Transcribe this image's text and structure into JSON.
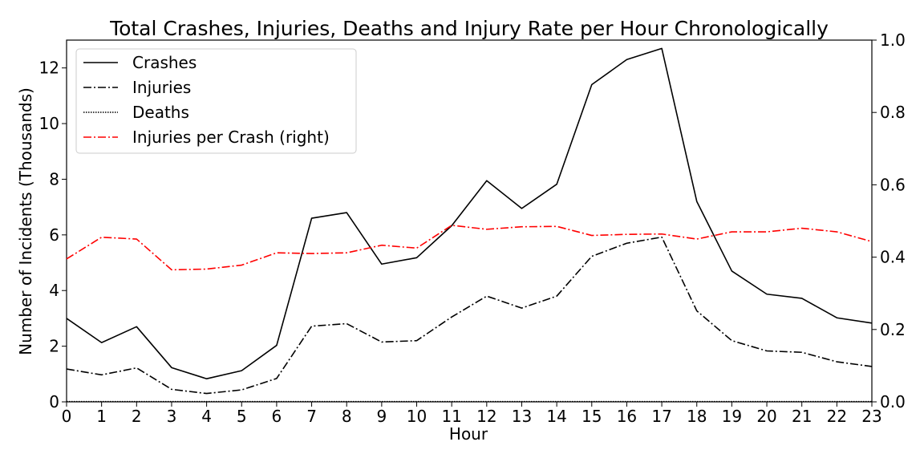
{
  "chart_data": {
    "type": "line",
    "title": "Total Crashes, Injuries, Deaths and Injury Rate per Hour Chronologically",
    "xlabel": "Hour",
    "ylabel": "Number of Incidents (Thousands)",
    "x": [
      0,
      1,
      2,
      3,
      4,
      5,
      6,
      7,
      8,
      9,
      10,
      11,
      12,
      13,
      14,
      15,
      16,
      17,
      18,
      19,
      20,
      21,
      22,
      23
    ],
    "xlim": [
      0,
      23
    ],
    "ylim": [
      0,
      13
    ],
    "y2lim": [
      0,
      1.0
    ],
    "y_ticks": [
      0,
      2,
      4,
      6,
      8,
      10,
      12
    ],
    "y2_ticks": [
      0.0,
      0.2,
      0.4,
      0.6,
      0.8,
      1.0
    ],
    "grid": false,
    "legend_position": "top-left",
    "series": [
      {
        "name": "Crashes",
        "axis": "left",
        "color": "#000000",
        "style": "solid",
        "values": [
          3.0,
          2.13,
          2.7,
          1.23,
          0.83,
          1.12,
          2.03,
          6.6,
          6.8,
          4.95,
          5.18,
          6.33,
          7.95,
          6.95,
          7.82,
          11.4,
          12.3,
          12.7,
          7.2,
          4.7,
          3.87,
          3.72,
          3.02,
          2.83
        ]
      },
      {
        "name": "Injuries",
        "axis": "left",
        "color": "#000000",
        "style": "dashdot",
        "values": [
          1.18,
          0.97,
          1.22,
          0.45,
          0.3,
          0.43,
          0.84,
          2.72,
          2.81,
          2.15,
          2.2,
          3.05,
          3.8,
          3.37,
          3.8,
          5.23,
          5.7,
          5.92,
          3.27,
          2.2,
          1.83,
          1.78,
          1.44,
          1.27
        ]
      },
      {
        "name": "Deaths",
        "axis": "left",
        "color": "#000000",
        "style": "dotted",
        "values": [
          0.01,
          0.01,
          0.01,
          0.01,
          0.01,
          0.01,
          0.01,
          0.01,
          0.01,
          0.01,
          0.01,
          0.01,
          0.01,
          0.01,
          0.01,
          0.01,
          0.01,
          0.01,
          0.01,
          0.01,
          0.01,
          0.01,
          0.01,
          0.01
        ]
      },
      {
        "name": "Injuries per Crash (right)",
        "axis": "right",
        "color": "#ff0000",
        "style": "dashdot",
        "values": [
          0.395,
          0.455,
          0.45,
          0.365,
          0.367,
          0.378,
          0.412,
          0.41,
          0.412,
          0.433,
          0.425,
          0.488,
          0.477,
          0.484,
          0.485,
          0.46,
          0.463,
          0.464,
          0.45,
          0.47,
          0.47,
          0.48,
          0.47,
          0.443
        ]
      }
    ]
  }
}
